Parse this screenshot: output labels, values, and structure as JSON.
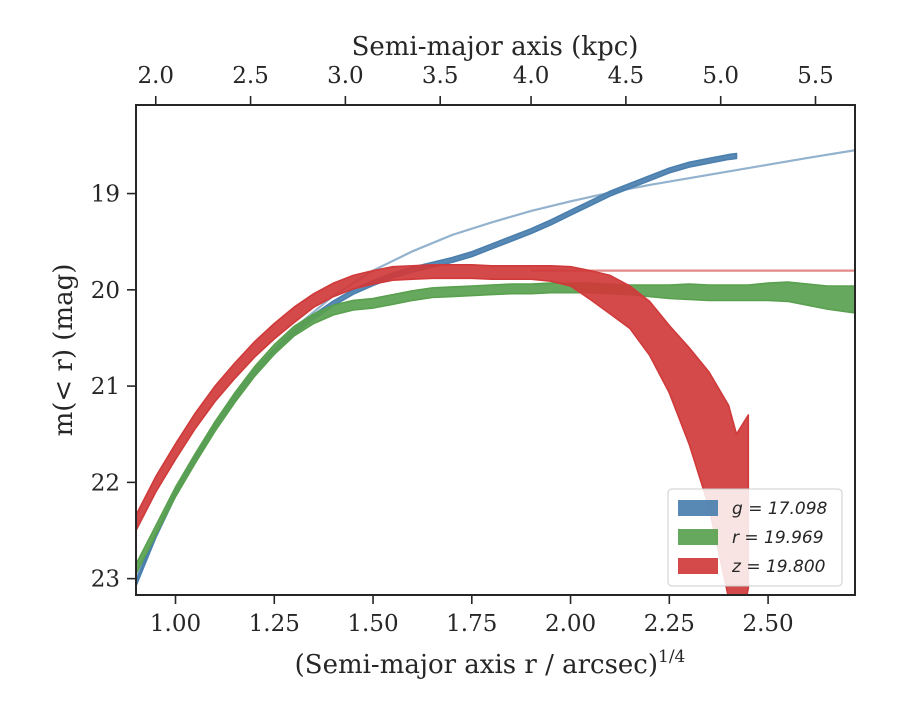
{
  "chart_data": {
    "type": "area",
    "xlabel_bottom": "(Semi-major axis r / arcsec)",
    "xlabel_bottom_exponent": "1/4",
    "xlabel_top": "Semi-major axis (kpc)",
    "ylabel": "m(< r) (mag)",
    "xlim": [
      0.9,
      2.72
    ],
    "ylim": [
      23.17,
      18.08
    ],
    "y_inverted": true,
    "x_ticks": [
      "1.00",
      "1.25",
      "1.50",
      "1.75",
      "2.00",
      "2.25",
      "2.50"
    ],
    "x_tick_values": [
      1.0,
      1.25,
      1.5,
      1.75,
      2.0,
      2.25,
      2.5
    ],
    "y_ticks": [
      "19",
      "20",
      "21",
      "22",
      "23"
    ],
    "y_tick_values": [
      19,
      20,
      21,
      22,
      23
    ],
    "top_ticks": [
      "2.0",
      "2.5",
      "3.0",
      "3.5",
      "4.0",
      "4.5",
      "5.0",
      "5.5"
    ],
    "top_tick_positions_bottom_units": [
      0.95,
      1.19,
      1.43,
      1.67,
      1.9,
      2.14,
      2.38,
      2.62
    ],
    "legend_position": "lower-right",
    "grid": false,
    "series": [
      {
        "name": "g = 17.098",
        "color": "#4a7fae",
        "x": [
          0.9,
          0.95,
          1.0,
          1.05,
          1.1,
          1.15,
          1.2,
          1.25,
          1.3,
          1.35,
          1.4,
          1.45,
          1.5,
          1.55,
          1.6,
          1.65,
          1.7,
          1.75,
          1.8,
          1.85,
          1.9,
          1.95,
          2.0,
          2.05,
          2.1,
          2.15,
          2.2,
          2.25,
          2.3,
          2.35,
          2.4,
          2.42
        ],
        "y": [
          23.05,
          22.55,
          22.12,
          21.75,
          21.42,
          21.12,
          20.86,
          20.64,
          20.44,
          20.28,
          20.14,
          20.02,
          19.93,
          19.85,
          19.79,
          19.74,
          19.69,
          19.63,
          19.55,
          19.47,
          19.39,
          19.3,
          19.2,
          19.1,
          19.0,
          18.92,
          18.84,
          18.76,
          18.7,
          18.66,
          18.62,
          18.61
        ],
        "half_width": 0.025,
        "fit": {
          "x": [
            0.9,
            1.0,
            1.1,
            1.2,
            1.3,
            1.4,
            1.5,
            1.6,
            1.7,
            1.8,
            1.9,
            2.0,
            2.1,
            2.2,
            2.3,
            2.4,
            2.5,
            2.6,
            2.72
          ],
          "y": [
            23.0,
            22.08,
            21.38,
            20.83,
            20.4,
            20.06,
            19.8,
            19.6,
            19.43,
            19.3,
            19.18,
            19.08,
            18.99,
            18.91,
            18.84,
            18.77,
            18.7,
            18.63,
            18.55
          ]
        }
      },
      {
        "name": "r = 19.969",
        "color": "#59a14f",
        "x": [
          0.9,
          0.95,
          1.0,
          1.05,
          1.1,
          1.15,
          1.2,
          1.25,
          1.3,
          1.35,
          1.4,
          1.45,
          1.5,
          1.55,
          1.6,
          1.65,
          1.7,
          1.75,
          1.8,
          1.85,
          1.9,
          1.95,
          2.0,
          2.05,
          2.1,
          2.15,
          2.2,
          2.25,
          2.3,
          2.35,
          2.4,
          2.45,
          2.5,
          2.55,
          2.6,
          2.65,
          2.72
        ],
        "y": [
          22.9,
          22.5,
          22.1,
          21.75,
          21.42,
          21.12,
          20.85,
          20.62,
          20.43,
          20.3,
          20.21,
          20.16,
          20.14,
          20.1,
          20.06,
          20.03,
          20.02,
          20.01,
          20.0,
          19.99,
          19.99,
          19.98,
          19.98,
          19.98,
          19.99,
          20.0,
          20.01,
          20.02,
          20.02,
          20.03,
          20.03,
          20.03,
          20.02,
          20.02,
          20.05,
          20.08,
          20.1
        ],
        "half_width": [
          0.05,
          0.05,
          0.05,
          0.05,
          0.05,
          0.05,
          0.05,
          0.05,
          0.05,
          0.05,
          0.05,
          0.05,
          0.05,
          0.05,
          0.05,
          0.05,
          0.05,
          0.05,
          0.05,
          0.05,
          0.05,
          0.05,
          0.05,
          0.05,
          0.05,
          0.05,
          0.06,
          0.07,
          0.08,
          0.08,
          0.08,
          0.08,
          0.09,
          0.1,
          0.11,
          0.12,
          0.14
        ]
      },
      {
        "name": "z = 19.800",
        "color": "#d03a3a",
        "x": [
          0.9,
          0.95,
          1.0,
          1.05,
          1.1,
          1.15,
          1.2,
          1.25,
          1.3,
          1.35,
          1.4,
          1.45,
          1.5,
          1.55,
          1.6,
          1.65,
          1.7,
          1.75,
          1.8,
          1.85,
          1.9,
          1.95,
          2.0,
          2.05,
          2.1,
          2.15,
          2.2,
          2.25,
          2.3,
          2.35,
          2.4,
          2.42,
          2.45
        ],
        "y": [
          22.42,
          22.02,
          21.68,
          21.36,
          21.08,
          20.84,
          20.62,
          20.43,
          20.26,
          20.11,
          20.0,
          19.92,
          19.87,
          19.83,
          19.82,
          19.81,
          19.81,
          19.81,
          19.82,
          19.82,
          19.82,
          19.83,
          19.86,
          19.95,
          20.05,
          20.18,
          20.4,
          20.72,
          21.1,
          21.55,
          22.2,
          22.6,
          22.2
        ],
        "half_width": [
          0.08,
          0.08,
          0.08,
          0.08,
          0.08,
          0.08,
          0.08,
          0.08,
          0.08,
          0.07,
          0.07,
          0.07,
          0.07,
          0.07,
          0.07,
          0.07,
          0.07,
          0.07,
          0.07,
          0.07,
          0.07,
          0.08,
          0.1,
          0.15,
          0.2,
          0.22,
          0.28,
          0.35,
          0.5,
          0.7,
          1.0,
          1.1,
          0.9
        ],
        "fit": {
          "x": [
            1.9,
            2.72
          ],
          "y": [
            19.8,
            19.8
          ]
        }
      }
    ]
  }
}
